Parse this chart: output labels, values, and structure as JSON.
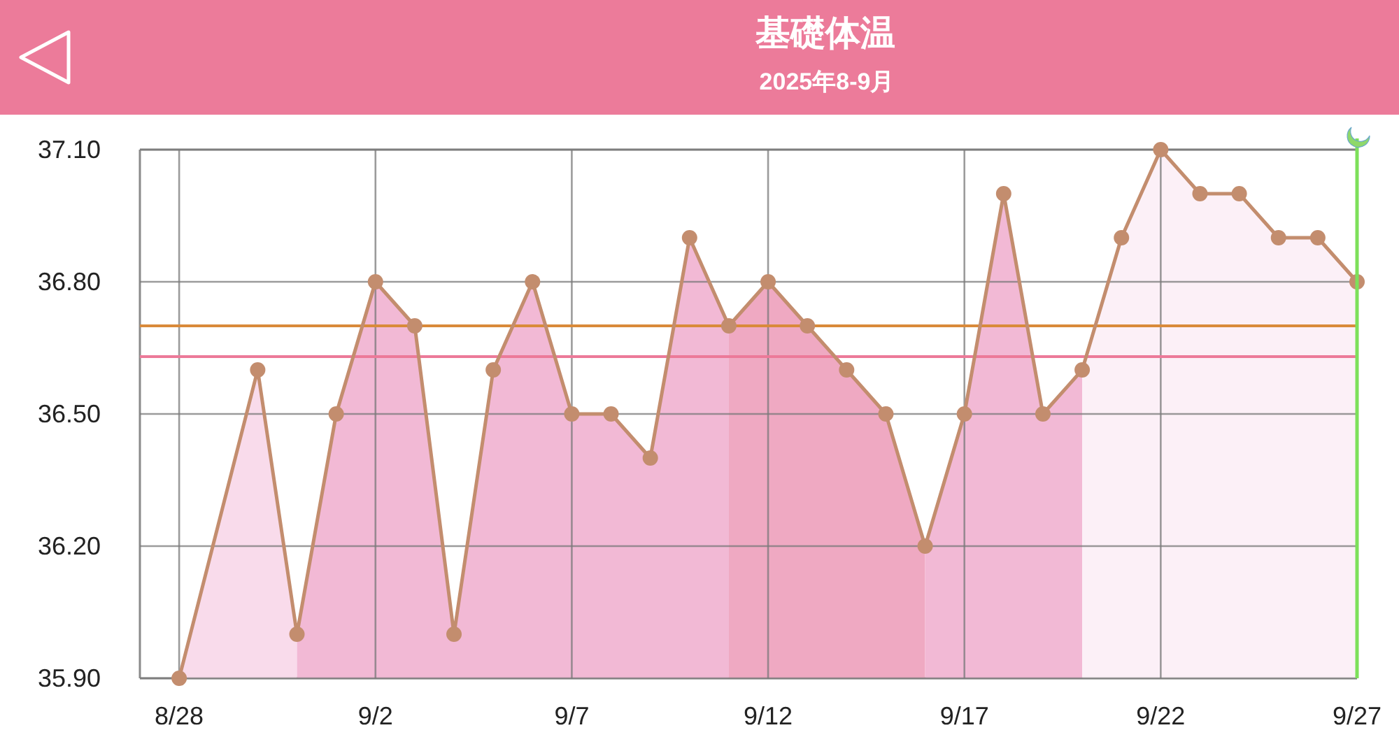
{
  "chart_data": {
    "type": "line",
    "title": "基礎体温",
    "subtitle": "2025年8-9月",
    "xlim": [
      "2025-08-27",
      "2025-09-27"
    ],
    "xticks": [
      {
        "value": "2025-08-28",
        "label": "8/28"
      },
      {
        "value": "2025-09-02",
        "label": "9/2"
      },
      {
        "value": "2025-09-07",
        "label": "9/7"
      },
      {
        "value": "2025-09-12",
        "label": "9/12"
      },
      {
        "value": "2025-09-17",
        "label": "9/17"
      },
      {
        "value": "2025-09-22",
        "label": "9/22"
      },
      {
        "value": "2025-09-27",
        "label": "9/27"
      }
    ],
    "ylim": [
      35.9,
      37.1
    ],
    "yticks": [
      {
        "value": 35.9,
        "label": "35.90"
      },
      {
        "value": 36.2,
        "label": "36.20"
      },
      {
        "value": 36.5,
        "label": "36.50"
      },
      {
        "value": 36.8,
        "label": "36.80"
      },
      {
        "value": 37.1,
        "label": "37.10"
      }
    ],
    "grid": true,
    "series": [
      {
        "type": "area",
        "color": "#f9dbeb",
        "x": [
          "2025-08-28",
          "2025-08-30",
          "2025-08-31"
        ],
        "values": [
          35.9,
          36.6,
          36.0
        ]
      },
      {
        "type": "area",
        "color": "#f2b9d5",
        "x": [
          "2025-08-31",
          "2025-09-01",
          "2025-09-02",
          "2025-09-03",
          "2025-09-04",
          "2025-09-05",
          "2025-09-06",
          "2025-09-07",
          "2025-09-08",
          "2025-09-09",
          "2025-09-10",
          "2025-09-11"
        ],
        "values": [
          36.0,
          36.5,
          36.8,
          36.7,
          36.0,
          36.6,
          36.8,
          36.5,
          36.5,
          36.4,
          36.9,
          36.7
        ]
      },
      {
        "type": "area",
        "color": "#efa9c2",
        "x": [
          "2025-09-11",
          "2025-09-12",
          "2025-09-13",
          "2025-09-14",
          "2025-09-15",
          "2025-09-16"
        ],
        "values": [
          36.7,
          36.8,
          36.7,
          36.6,
          36.5,
          36.2
        ]
      },
      {
        "type": "area",
        "color": "#f2b9d5",
        "x": [
          "2025-09-16",
          "2025-09-17",
          "2025-09-18",
          "2025-09-19",
          "2025-09-20"
        ],
        "values": [
          36.2,
          36.5,
          37.0,
          36.5,
          36.6
        ]
      },
      {
        "type": "area",
        "color": "#fcf0f7",
        "x": [
          "2025-09-20",
          "2025-09-21",
          "2025-09-22",
          "2025-09-23",
          "2025-09-24",
          "2025-09-25",
          "2025-09-26",
          "2025-09-27"
        ],
        "values": [
          36.6,
          36.9,
          37.1,
          37.0,
          37.0,
          36.9,
          36.9,
          36.8
        ]
      },
      {
        "color": "#c38d6e",
        "marker": "circle",
        "x": [
          "2025-08-28",
          "2025-08-30",
          "2025-08-31",
          "2025-09-01",
          "2025-09-02",
          "2025-09-03",
          "2025-09-04",
          "2025-09-05",
          "2025-09-06",
          "2025-09-07",
          "2025-09-08",
          "2025-09-09",
          "2025-09-10",
          "2025-09-11",
          "2025-09-12",
          "2025-09-13",
          "2025-09-14",
          "2025-09-15",
          "2025-09-16",
          "2025-09-17",
          "2025-09-18",
          "2025-09-19",
          "2025-09-20",
          "2025-09-21",
          "2025-09-22",
          "2025-09-23",
          "2025-09-24",
          "2025-09-25",
          "2025-09-26",
          "2025-09-27"
        ],
        "values": [
          35.9,
          36.6,
          36.0,
          36.5,
          36.8,
          36.7,
          36.0,
          36.6,
          36.8,
          36.5,
          36.5,
          36.4,
          36.9,
          36.7,
          36.8,
          36.7,
          36.6,
          36.5,
          36.2,
          36.5,
          37.0,
          36.5,
          36.6,
          36.9,
          37.1,
          37.0,
          37.0,
          36.9,
          36.9,
          36.8
        ]
      }
    ],
    "ref_lines": [
      {
        "axis": "y",
        "value": 36.7,
        "color": "#d98a3a"
      },
      {
        "axis": "y",
        "value": 36.63,
        "color": "#ec7a99"
      },
      {
        "axis": "x",
        "value": "2025-09-27",
        "color": "#7de05a"
      }
    ]
  }
}
